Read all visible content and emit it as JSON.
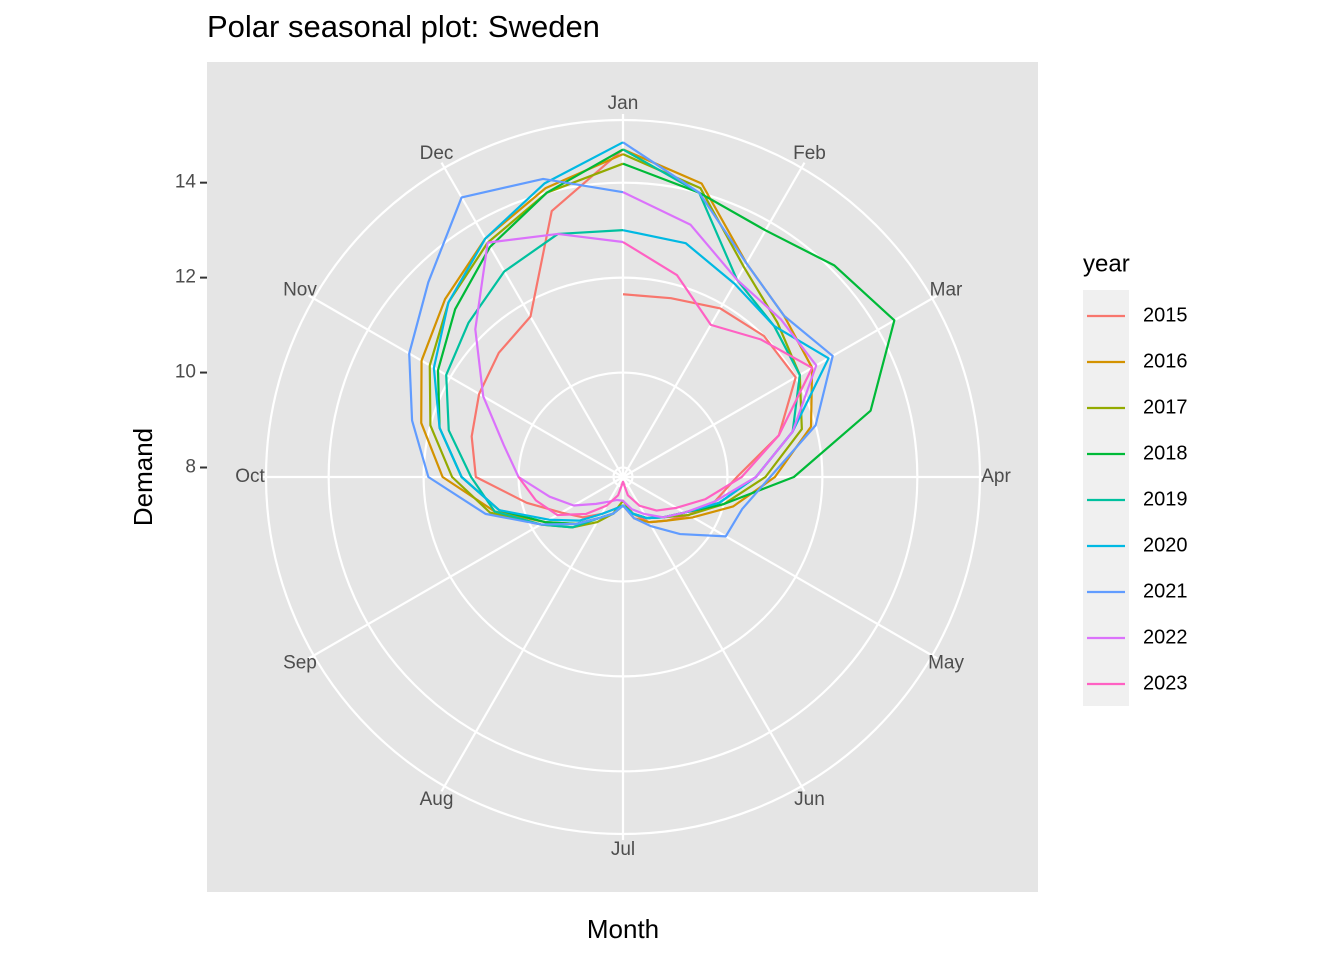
{
  "chart_data": {
    "type": "polar-line",
    "title": "Polar seasonal plot: Sweden",
    "x_label": "Month",
    "y_label": "Demand",
    "legend_title": "year",
    "x": [
      1,
      1.5,
      2,
      2.5,
      3,
      3.5,
      4,
      4.5,
      5,
      5.5,
      6,
      6.5,
      7,
      7.5,
      8,
      8.5,
      9,
      9.5,
      10,
      10.5,
      11,
      11.5,
      12,
      12.5,
      13
    ],
    "xlim": [
      1,
      13
    ],
    "xticks": [
      {
        "value": 1,
        "label": "Jan"
      },
      {
        "value": 2,
        "label": "Feb"
      },
      {
        "value": 3,
        "label": "Mar"
      },
      {
        "value": 4,
        "label": "Apr"
      },
      {
        "value": 5,
        "label": "May"
      },
      {
        "value": 6,
        "label": "Jun"
      },
      {
        "value": 7,
        "label": "Jul"
      },
      {
        "value": 8,
        "label": "Aug"
      },
      {
        "value": 9,
        "label": "Sep"
      },
      {
        "value": 10,
        "label": "Oct"
      },
      {
        "value": 11,
        "label": "Nov"
      },
      {
        "value": 12,
        "label": "Dec"
      }
    ],
    "ylim": [
      7.8,
      15.32
    ],
    "yticks": [
      8,
      10,
      12,
      14
    ],
    "grid": true,
    "series": [
      {
        "name": "2015",
        "color": "#F8766D",
        "values": [
          11.65,
          11.7,
          11.9,
          12.0,
          12.0,
          11.2,
          10.2,
          9.8,
          9.4,
          9.1,
          8.9,
          8.6,
          8.4,
          8.5,
          8.7,
          9.0,
          9.3,
          9.9,
          10.9,
          11.1,
          11.3,
          11.5,
          11.7,
          13.6,
          14.7
        ]
      },
      {
        "name": "2016",
        "color": "#D39200",
        "values": [
          14.7,
          14.2,
          13.0,
          12.6,
          12.4,
          11.9,
          11.0,
          10.2,
          9.5,
          9.1,
          8.9,
          8.7,
          8.4,
          8.6,
          8.8,
          9.2,
          9.7,
          10.6,
          11.6,
          12.2,
          12.7,
          13.1,
          13.6,
          14.1,
          14.6
        ]
      },
      {
        "name": "2017",
        "color": "#93AA00",
        "values": [
          14.6,
          14.1,
          12.9,
          12.4,
          12.1,
          11.7,
          10.8,
          10.0,
          9.4,
          9.0,
          8.8,
          8.6,
          8.3,
          8.6,
          8.9,
          9.3,
          9.8,
          10.7,
          11.4,
          12.0,
          12.5,
          13.0,
          13.5,
          14.0,
          14.4
        ]
      },
      {
        "name": "2018",
        "color": "#00BA38",
        "values": [
          14.4,
          14.0,
          13.8,
          14.1,
          14.4,
          13.2,
          11.4,
          10.0,
          9.3,
          9.0,
          8.8,
          8.6,
          8.4,
          8.6,
          8.8,
          9.2,
          9.7,
          10.5,
          11.2,
          11.8,
          12.3,
          12.8,
          13.4,
          14.0,
          14.7
        ]
      },
      {
        "name": "2019",
        "color": "#00C19F",
        "values": [
          14.7,
          14.0,
          12.6,
          12.3,
          12.1,
          11.5,
          10.6,
          9.9,
          9.3,
          9.0,
          8.8,
          8.6,
          8.4,
          8.6,
          8.8,
          9.3,
          9.8,
          10.6,
          11.0,
          11.6,
          12.1,
          12.4,
          12.8,
          13.1,
          13.0
        ]
      },
      {
        "name": "2020",
        "color": "#00B9E3",
        "values": [
          13.0,
          12.9,
          12.5,
          12.3,
          12.8,
          11.5,
          10.6,
          9.9,
          9.3,
          9.0,
          8.8,
          8.6,
          8.4,
          8.5,
          8.7,
          9.1,
          9.6,
          10.5,
          11.2,
          11.8,
          12.4,
          13.0,
          13.6,
          14.2,
          14.85
        ]
      },
      {
        "name": "2021",
        "color": "#619CFF",
        "values": [
          14.85,
          14.0,
          13.0,
          12.6,
          12.9,
          12.0,
          10.9,
          10.4,
          10.3,
          9.5,
          9.0,
          8.7,
          8.4,
          8.6,
          8.8,
          9.2,
          9.8,
          10.8,
          11.9,
          12.4,
          13.0,
          13.6,
          14.6,
          14.3,
          13.8
        ]
      },
      {
        "name": "2022",
        "color": "#DB72FB",
        "values": [
          13.8,
          13.3,
          12.6,
          12.5,
          12.5,
          11.5,
          10.6,
          9.8,
          9.3,
          9.0,
          8.7,
          8.5,
          8.3,
          8.3,
          8.4,
          8.6,
          9.0,
          9.4,
          10.0,
          10.4,
          11.2,
          12.2,
          13.5,
          13.1,
          12.75
        ]
      },
      {
        "name": "2023",
        "color": "#FF61C3",
        "values": [
          12.75,
          12.2,
          11.5,
          11.9,
          12.4,
          11.2,
          10.3,
          9.6,
          9.1,
          8.8,
          8.5,
          8.2,
          7.9,
          8.2,
          8.5,
          8.9,
          9.4,
          9.7,
          10.0,
          null,
          null,
          null,
          null,
          null,
          null
        ]
      }
    ]
  }
}
